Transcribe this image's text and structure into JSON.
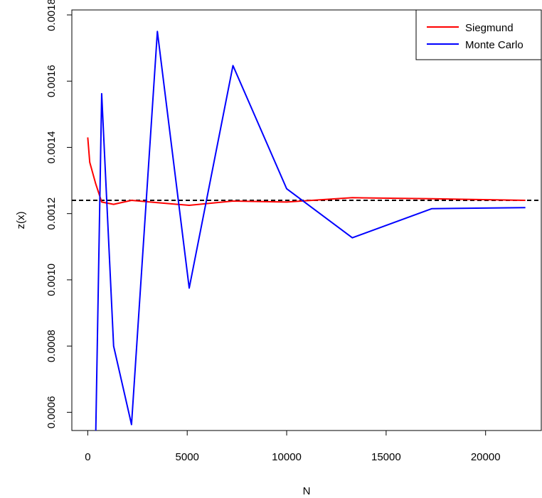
{
  "chart_data": {
    "type": "line",
    "title": "",
    "xlabel": "N",
    "ylabel": "z(x)",
    "xlim": [
      -800,
      22800
    ],
    "ylim": [
      0.000545,
      0.001815
    ],
    "x_ticks": [
      0,
      5000,
      10000,
      15000,
      20000
    ],
    "y_ticks": [
      0.0006,
      0.0008,
      0.001,
      0.0012,
      0.0014,
      0.0016,
      0.0018
    ],
    "y_tick_labels": [
      "0.0006",
      "0.0008",
      "0.0010",
      "0.0012",
      "0.0014",
      "0.0016",
      "0.0018"
    ],
    "x_tick_labels": [
      "0",
      "5000",
      "10000",
      "15000",
      "20000"
    ],
    "grid": false,
    "legend_position": "top-right",
    "reference_line": {
      "y": 0.00124,
      "style": "dashed",
      "color": "#000000"
    },
    "series": [
      {
        "name": "Siegmund",
        "color": "#ff0000",
        "x": [
          0,
          100,
          400,
          700,
          1300,
          2200,
          3500,
          5100,
          7300,
          10000,
          13300,
          17300,
          22000
        ],
        "y": [
          0.00143,
          0.001355,
          0.00129,
          0.001235,
          0.001228,
          0.00124,
          0.001233,
          0.001225,
          0.001238,
          0.001235,
          0.001248,
          0.001245,
          0.00124
        ]
      },
      {
        "name": "Monte Carlo",
        "color": "#0000ff",
        "x": [
          400,
          700,
          1300,
          2200,
          3500,
          5100,
          7300,
          10000,
          13300,
          17300,
          22000
        ],
        "y": [
          0.00053,
          0.001562,
          0.0008,
          0.000563,
          0.00175,
          0.000975,
          0.001647,
          0.001275,
          0.001127,
          0.001215,
          0.001218
        ]
      }
    ]
  }
}
